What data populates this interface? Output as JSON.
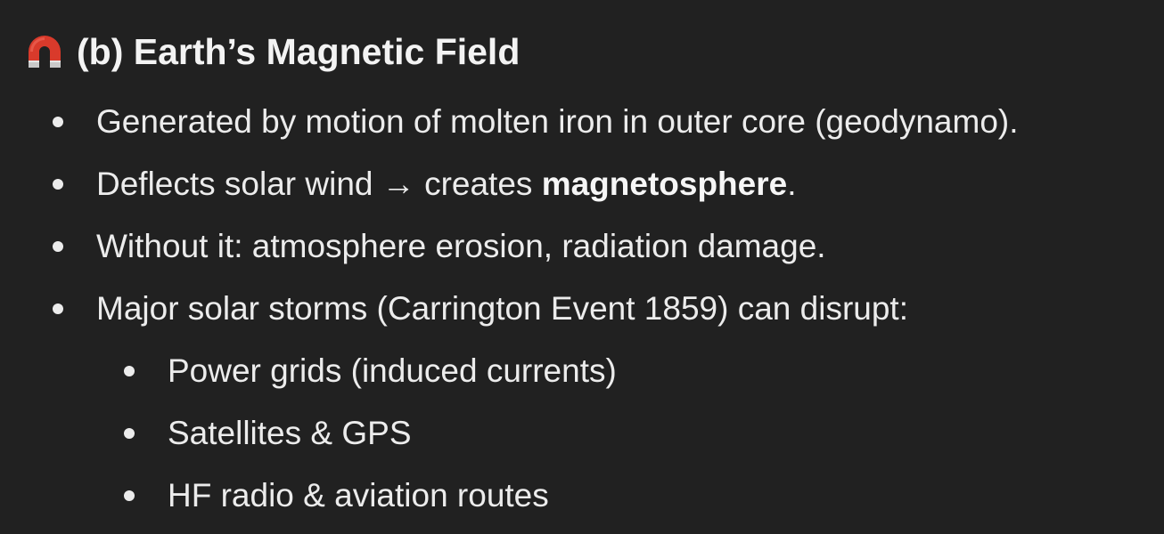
{
  "heading": {
    "icon": "magnet-icon",
    "text": "(b) Earth’s Magnetic Field"
  },
  "bullets": [
    {
      "text": "Generated by motion of molten iron in outer core (geodynamo)."
    },
    {
      "text_before": "Deflects solar wind → creates ",
      "bold": "magnetosphere",
      "text_after": "."
    },
    {
      "text": "Without it: atmosphere erosion, radiation damage."
    },
    {
      "text": "Major solar storms (Carrington Event 1859) can disrupt:"
    }
  ],
  "sub_bullets": [
    {
      "text": "Power grids (induced currents)"
    },
    {
      "text": "Satellites & GPS"
    },
    {
      "text": "HF radio & aviation routes"
    }
  ],
  "colors": {
    "background": "#212121",
    "text": "#ececec",
    "magnet_red": "#d93a2b",
    "magnet_tip": "#c9c9c9"
  }
}
